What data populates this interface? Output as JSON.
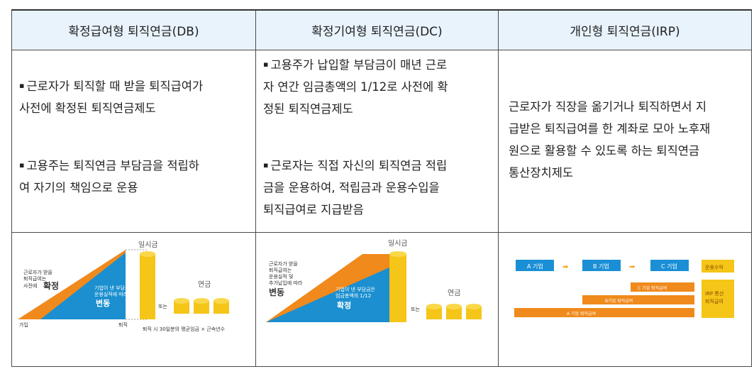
{
  "columns": [
    {
      "header": "확정급여형 퇴직연금(DB)",
      "bullets": [
        {
          "marker": "▪",
          "lines": [
            "근로자가 퇴직할 때 받을 퇴직급여가",
            "사전에 확정된 퇴직연금제도"
          ]
        },
        {
          "marker": "▪",
          "lines": [
            "고용주는 퇴직연금 부담금을 적립하",
            "여 자기의 책임으로 운용"
          ]
        }
      ],
      "diagram": {
        "top_label": "일시금",
        "left_note": [
          "근로자가 받을",
          "퇴직급여는",
          "사전에"
        ],
        "left_big": "확정",
        "mid_note": [
          "기업이 낸 부담금은",
          "운용실적에 따라"
        ],
        "mid_big": "변동",
        "or_label": "또는",
        "pension_label": "연금",
        "x_start": "가입",
        "x_end": "퇴직",
        "formula": "퇴직 시 30일분의 평균임금 × 근속년수"
      }
    },
    {
      "header": "확정기여형 퇴직연금(DC)",
      "bullets": [
        {
          "marker": "▪",
          "lines": [
            "고용주가 납입할 부담금이 매년 근로",
            "자 연간 임금총액의 1/12로 사전에 확",
            "정된 퇴직연금제도"
          ]
        },
        {
          "marker": "▪",
          "lines": [
            "근로자는 직접 자신의 퇴직연금 적립",
            "금을 운용하여, 적립금과 운용수입을",
            "퇴직급여로 지급받음"
          ]
        }
      ],
      "diagram": {
        "top_label": "일시금",
        "left_note": [
          "근로자가 받을",
          "퇴직급여는",
          "운용실적 및",
          "추가납입에 따라"
        ],
        "left_big": "변동",
        "mid_note": [
          "기업이 낸 부담금은",
          "임금총액의 1/12"
        ],
        "mid_big": "확정",
        "or_label": "또는",
        "pension_label": "연금"
      }
    },
    {
      "header": "개인형 퇴직연금(IRP)",
      "paragraph": [
        "근로자가 직장을 옮기거나 퇴직하면서 지",
        "급받은 퇴직급여를 한 계좌로 모아 노후재",
        "원으로 활용할 수 있도록 하는 퇴직연금",
        "통산장치제도"
      ],
      "diagram": {
        "firms": [
          "A 기업",
          "B 기업",
          "C 기업"
        ],
        "bars": [
          "C 기업 퇴직급여",
          "B기업 퇴직급여",
          "A 기업 퇴직급여"
        ],
        "box_top": "운용수익",
        "box_bottom": [
          "IRP 통산",
          "퇴직급여"
        ]
      }
    }
  ],
  "colors": {
    "header_bg": "#e8f3fc",
    "orange": "#f08a1c",
    "blue": "#1b8fd0",
    "gold": "#f5c518",
    "irp_blue": "#1a8fd6"
  }
}
